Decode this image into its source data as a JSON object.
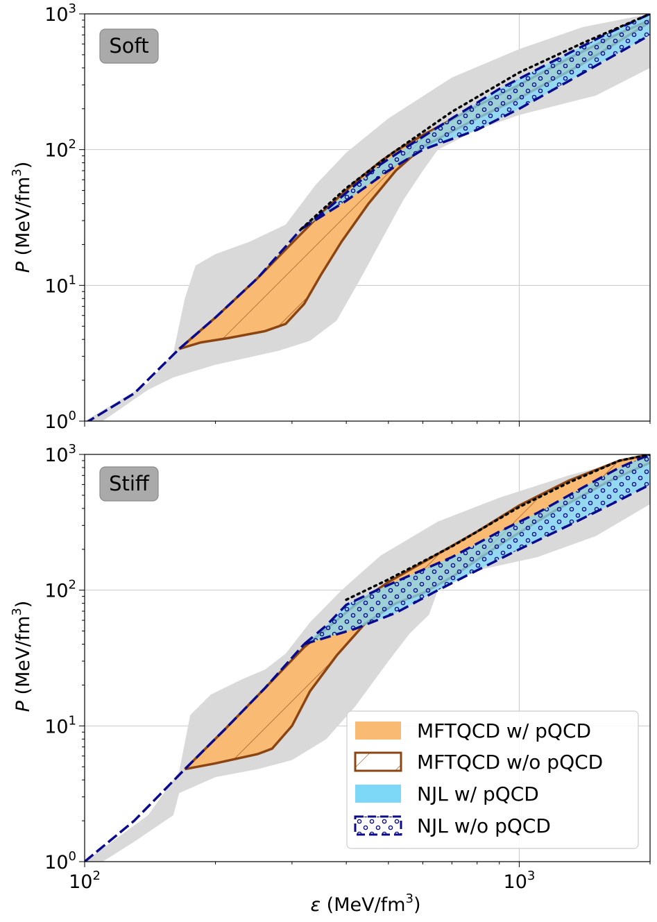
{
  "colors": {
    "gray_band": "#d9d9d9",
    "mft_fill": "#f9bb74",
    "mft_line": "#8b4513",
    "njl_fill": "#7dd8f8",
    "njl_line": "#0a0a8c",
    "grid": "#c8c8c8"
  },
  "chart_data": [
    {
      "type": "area",
      "panel_tag": "Soft",
      "xscale": "log",
      "yscale": "log",
      "xlim": [
        100,
        2000
      ],
      "ylim": [
        1,
        1000
      ],
      "xlabel": "",
      "ylabel_main": "P",
      "ylabel_units": " (MeV/fm",
      "ylabel_sup": "3",
      "ylabel_close": ")",
      "xticks": [],
      "xtick_base": [],
      "xtick_exp": [],
      "yticks": [
        1,
        10,
        100,
        1000
      ],
      "ytick_base": [
        "10",
        "10",
        "10",
        "10"
      ],
      "ytick_exp": [
        "0",
        "1",
        "2",
        "3"
      ],
      "gray_band": {
        "upper": [
          [
            100,
            1.0
          ],
          [
            140,
            1.9
          ],
          [
            160,
            3.2
          ],
          [
            170,
            8
          ],
          [
            180,
            14
          ],
          [
            200,
            17
          ],
          [
            240,
            21
          ],
          [
            290,
            28
          ],
          [
            340,
            55
          ],
          [
            400,
            95
          ],
          [
            500,
            170
          ],
          [
            700,
            340
          ],
          [
            1000,
            550
          ],
          [
            1400,
            800
          ],
          [
            2000,
            1000
          ]
        ],
        "lower": [
          [
            110,
            1.0
          ],
          [
            140,
            1.7
          ],
          [
            160,
            2.1
          ],
          [
            200,
            2.6
          ],
          [
            280,
            3.3
          ],
          [
            330,
            3.9
          ],
          [
            380,
            5.5
          ],
          [
            430,
            11
          ],
          [
            480,
            21
          ],
          [
            540,
            42
          ],
          [
            600,
            70
          ],
          [
            650,
            100
          ],
          [
            800,
            140
          ],
          [
            1000,
            180
          ],
          [
            1500,
            250
          ],
          [
            2000,
            400
          ]
        ]
      },
      "mft_band": {
        "upper": [
          [
            165,
            3.4
          ],
          [
            200,
            5.8
          ],
          [
            250,
            11.3
          ],
          [
            300,
            20.5
          ],
          [
            360,
            37
          ],
          [
            420,
            58
          ],
          [
            480,
            82
          ],
          [
            520,
            98
          ],
          [
            600,
            128
          ],
          [
            800,
            210
          ],
          [
            1000,
            300
          ],
          [
            1300,
            470
          ],
          [
            1700,
            720
          ],
          [
            2000,
            900
          ]
        ],
        "lower": [
          [
            165,
            3.4
          ],
          [
            185,
            3.8
          ],
          [
            215,
            4.1
          ],
          [
            260,
            4.6
          ],
          [
            290,
            5.2
          ],
          [
            320,
            7.3
          ],
          [
            350,
            12
          ],
          [
            390,
            21
          ],
          [
            450,
            40
          ],
          [
            520,
            70
          ],
          [
            600,
            105
          ],
          [
            800,
            170
          ],
          [
            1000,
            240
          ],
          [
            1400,
            430
          ],
          [
            2000,
            870
          ]
        ]
      },
      "njl_band": {
        "upper": [
          [
            315,
            26
          ],
          [
            360,
            36
          ],
          [
            420,
            55
          ],
          [
            480,
            78
          ],
          [
            560,
            108
          ],
          [
            700,
            170
          ],
          [
            900,
            280
          ],
          [
            1200,
            450
          ],
          [
            1600,
            720
          ],
          [
            2000,
            1000
          ]
        ],
        "lower": [
          [
            315,
            26
          ],
          [
            400,
            42
          ],
          [
            500,
            70
          ],
          [
            600,
            100
          ],
          [
            800,
            140
          ],
          [
            1000,
            200
          ],
          [
            1300,
            320
          ],
          [
            1700,
            520
          ],
          [
            2000,
            700
          ]
        ]
      },
      "common_curve": [
        [
          100,
          0.96
        ],
        [
          130,
          1.6
        ],
        [
          165,
          3.4
        ],
        [
          200,
          5.8
        ],
        [
          250,
          11.3
        ],
        [
          315,
          26
        ]
      ],
      "dotted_curve": [
        [
          315,
          26
        ],
        [
          400,
          52
        ],
        [
          500,
          90
        ],
        [
          700,
          190
        ],
        [
          1000,
          370
        ],
        [
          1400,
          610
        ],
        [
          2000,
          1000
        ]
      ]
    },
    {
      "type": "area",
      "panel_tag": "Stiff",
      "xscale": "log",
      "yscale": "log",
      "xlim": [
        100,
        2000
      ],
      "ylim": [
        1,
        1000
      ],
      "xlabel_main": "ε",
      "xlabel_units": " (MeV/fm",
      "xlabel_sup": "3",
      "xlabel_close": ")",
      "ylabel_main": "P",
      "ylabel_units": " (MeV/fm",
      "ylabel_sup": "3",
      "ylabel_close": ")",
      "xticks": [
        100,
        1000
      ],
      "xtick_base": [
        "10",
        "10"
      ],
      "xtick_exp": [
        "2",
        "3"
      ],
      "yticks": [
        1,
        10,
        100,
        1000
      ],
      "ytick_base": [
        "10",
        "10",
        "10",
        "10"
      ],
      "ytick_exp": [
        "0",
        "1",
        "2",
        "3"
      ],
      "gray_band": {
        "upper": [
          [
            100,
            1.0
          ],
          [
            140,
            2.2
          ],
          [
            165,
            4.6
          ],
          [
            175,
            12
          ],
          [
            195,
            17
          ],
          [
            230,
            22
          ],
          [
            260,
            26
          ],
          [
            290,
            34
          ],
          [
            330,
            58
          ],
          [
            390,
            100
          ],
          [
            480,
            180
          ],
          [
            650,
            320
          ],
          [
            900,
            480
          ],
          [
            1300,
            700
          ],
          [
            2000,
            1000
          ]
        ],
        "lower": [
          [
            110,
            1.0
          ],
          [
            130,
            1.4
          ],
          [
            160,
            2.2
          ],
          [
            165,
            3.2
          ],
          [
            200,
            4.2
          ],
          [
            250,
            4.8
          ],
          [
            300,
            5.6
          ],
          [
            360,
            8
          ],
          [
            420,
            14
          ],
          [
            500,
            30
          ],
          [
            560,
            48
          ],
          [
            620,
            66
          ],
          [
            650,
            100
          ],
          [
            800,
            140
          ],
          [
            1100,
            175
          ],
          [
            1500,
            250
          ],
          [
            2000,
            430
          ]
        ]
      },
      "mft_band": {
        "upper": [
          [
            170,
            4.8
          ],
          [
            210,
            9.4
          ],
          [
            260,
            19
          ],
          [
            320,
            38
          ],
          [
            360,
            52
          ],
          [
            420,
            78
          ],
          [
            500,
            115
          ],
          [
            600,
            160
          ],
          [
            800,
            270
          ],
          [
            1000,
            420
          ],
          [
            1300,
            640
          ],
          [
            1700,
            900
          ],
          [
            2000,
            1000
          ]
        ],
        "lower": [
          [
            170,
            4.8
          ],
          [
            200,
            5.3
          ],
          [
            250,
            6.2
          ],
          [
            270,
            6.8
          ],
          [
            300,
            10
          ],
          [
            330,
            18
          ],
          [
            380,
            33
          ],
          [
            440,
            56
          ],
          [
            520,
            80
          ],
          [
            600,
            95
          ],
          [
            700,
            125
          ],
          [
            900,
            215
          ],
          [
            1200,
            380
          ],
          [
            1600,
            630
          ],
          [
            2000,
            870
          ]
        ]
      },
      "njl_band": {
        "upper": [
          [
            320,
            40
          ],
          [
            360,
            55
          ],
          [
            400,
            78
          ],
          [
            470,
            100
          ],
          [
            550,
            125
          ],
          [
            700,
            175
          ],
          [
            900,
            270
          ],
          [
            1100,
            370
          ],
          [
            1400,
            570
          ],
          [
            1700,
            800
          ],
          [
            2000,
            1000
          ]
        ],
        "lower": [
          [
            320,
            40
          ],
          [
            420,
            52
          ],
          [
            520,
            68
          ],
          [
            650,
            100
          ],
          [
            800,
            140
          ],
          [
            1000,
            200
          ],
          [
            1300,
            300
          ],
          [
            1700,
            460
          ],
          [
            2000,
            600
          ]
        ]
      },
      "common_curve": [
        [
          100,
          1.0
        ],
        [
          130,
          2.0
        ],
        [
          170,
          4.8
        ],
        [
          210,
          9.4
        ],
        [
          260,
          19
        ],
        [
          320,
          40
        ]
      ],
      "dotted_curve": [
        [
          400,
          85
        ],
        [
          500,
          120
        ],
        [
          700,
          210
        ],
        [
          1000,
          410
        ],
        [
          1300,
          620
        ],
        [
          1700,
          900
        ],
        [
          2000,
          1000
        ]
      ]
    }
  ],
  "legend": {
    "items": [
      {
        "label": "MFTQCD w/ pQCD"
      },
      {
        "label": "MFTQCD w/o pQCD"
      },
      {
        "label": "NJL w/ pQCD"
      },
      {
        "label": "NJL w/o pQCD"
      }
    ]
  }
}
